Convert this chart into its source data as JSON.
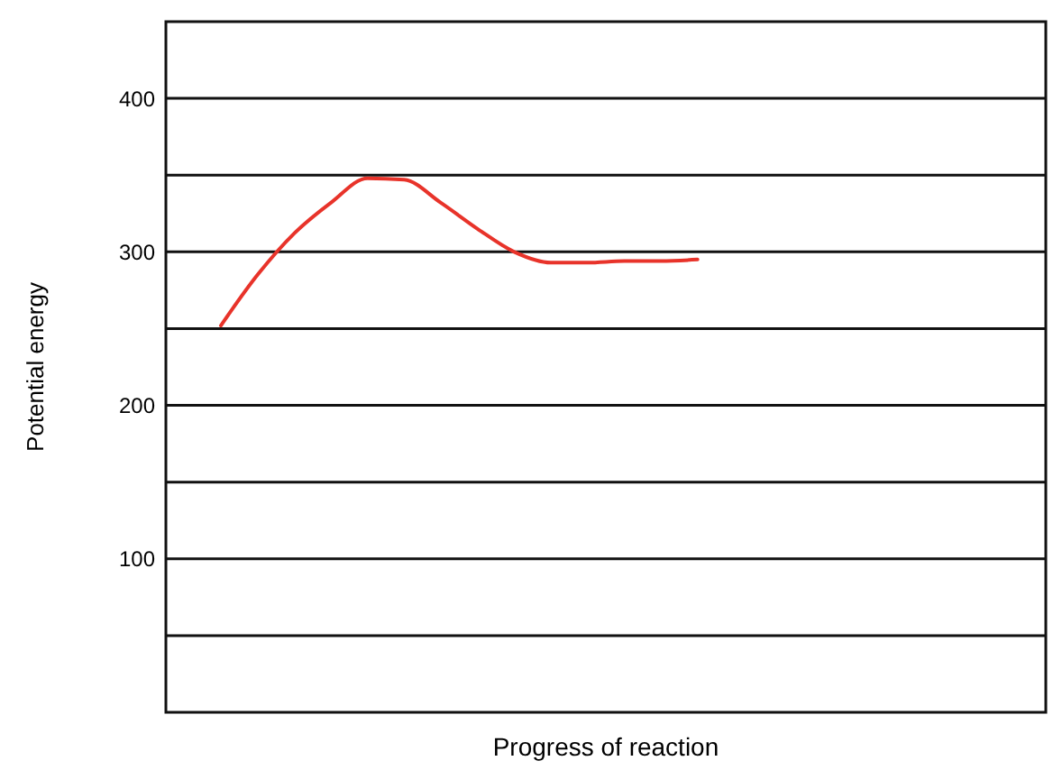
{
  "chart_data": {
    "type": "line",
    "xlabel": "Progress of reaction",
    "ylabel": "Potential energy",
    "categories": [
      null,
      null,
      null,
      null,
      null,
      null,
      null,
      null,
      null,
      null,
      null,
      null,
      null,
      null,
      null,
      null,
      null,
      null,
      null,
      null,
      null,
      null,
      null,
      null
    ],
    "series": [
      {
        "color": "#e8332a",
        "values": [
          null,
          252,
          285,
          312,
          332,
          348,
          347,
          332,
          315,
          300,
          293,
          293,
          294,
          294,
          295,
          null,
          null,
          null,
          null,
          null,
          null,
          null,
          null,
          null
        ]
      }
    ],
    "ylim": [
      0,
      450
    ],
    "yticks": [
      {
        "value": 50,
        "label": null
      },
      100,
      {
        "value": 150,
        "label": null
      },
      200,
      {
        "value": 250,
        "label": null
      },
      300,
      {
        "value": 350,
        "label": null
      },
      400
    ],
    "grid": "y",
    "tick_labels": "y"
  }
}
